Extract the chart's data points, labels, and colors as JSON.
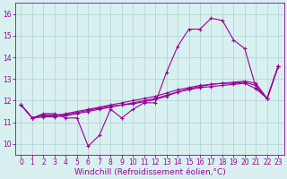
{
  "xlabel": "Windchill (Refroidissement éolien,°C)",
  "x": [
    0,
    1,
    2,
    3,
    4,
    5,
    6,
    7,
    8,
    9,
    10,
    11,
    12,
    13,
    14,
    15,
    16,
    17,
    18,
    19,
    20,
    21,
    22,
    23
  ],
  "line1": [
    11.8,
    11.2,
    11.4,
    11.4,
    11.2,
    11.2,
    9.9,
    10.4,
    11.6,
    11.2,
    11.6,
    11.9,
    11.9,
    13.3,
    14.5,
    15.3,
    15.3,
    15.8,
    15.7,
    14.8,
    14.4,
    12.6,
    12.1,
    13.6
  ],
  "line2": [
    11.8,
    11.2,
    11.35,
    11.35,
    11.35,
    11.45,
    11.55,
    11.65,
    11.75,
    11.8,
    11.85,
    11.95,
    12.05,
    12.2,
    12.4,
    12.55,
    12.65,
    12.75,
    12.8,
    12.85,
    12.9,
    12.8,
    12.1,
    13.6
  ],
  "line3": [
    11.8,
    11.2,
    11.3,
    11.3,
    11.4,
    11.5,
    11.6,
    11.7,
    11.8,
    11.9,
    12.0,
    12.1,
    12.2,
    12.35,
    12.5,
    12.6,
    12.7,
    12.75,
    12.8,
    12.8,
    12.85,
    12.7,
    12.1,
    13.6
  ],
  "line4": [
    11.8,
    11.2,
    11.25,
    11.25,
    11.3,
    11.4,
    11.5,
    11.6,
    11.7,
    11.8,
    11.9,
    12.0,
    12.1,
    12.25,
    12.4,
    12.5,
    12.6,
    12.65,
    12.7,
    12.75,
    12.8,
    12.55,
    12.1,
    13.6
  ],
  "line_color": "#990099",
  "bg_color": "#d8f0f0",
  "grid_color": "#b0d0d0",
  "ylim": [
    9.5,
    16.5
  ],
  "yticks": [
    10,
    11,
    12,
    13,
    14,
    15,
    16
  ],
  "xticks": [
    0,
    1,
    2,
    3,
    4,
    5,
    6,
    7,
    8,
    9,
    10,
    11,
    12,
    13,
    14,
    15,
    16,
    17,
    18,
    19,
    20,
    21,
    22,
    23
  ],
  "marker": "+",
  "marker_size": 3,
  "linewidth": 0.8,
  "tick_fontsize": 5.5,
  "label_fontsize": 6.5
}
